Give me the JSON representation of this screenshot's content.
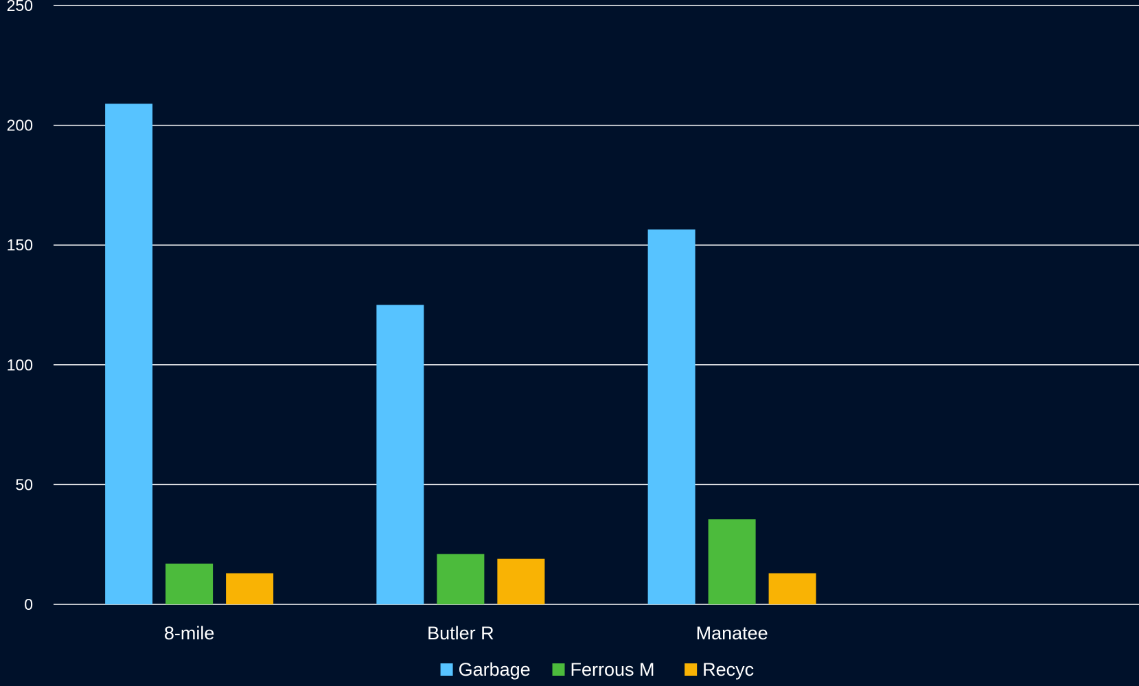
{
  "chart_data": {
    "type": "bar",
    "categories": [
      "8-mile",
      "Butler R",
      "Manatee",
      ""
    ],
    "series": [
      {
        "name": "Garbage",
        "values": [
          209,
          125,
          156.5,
          null
        ],
        "color": "#57c3ff"
      },
      {
        "name": "Ferrous M",
        "values": [
          17,
          21,
          35.5,
          null
        ],
        "color": "#4cbb3c"
      },
      {
        "name": "Recyc",
        "values": [
          13,
          19,
          13,
          null
        ],
        "color": "#f9b304"
      }
    ],
    "yticks": [
      0,
      50,
      100,
      150,
      200,
      250
    ],
    "ylim": [
      0,
      250
    ],
    "title": "",
    "xlabel": "",
    "ylabel": "",
    "grid": true,
    "legend_position": "bottom-center",
    "background": "#00112a",
    "gridline_color": "#ffffff",
    "text_color": "#ffffff"
  }
}
